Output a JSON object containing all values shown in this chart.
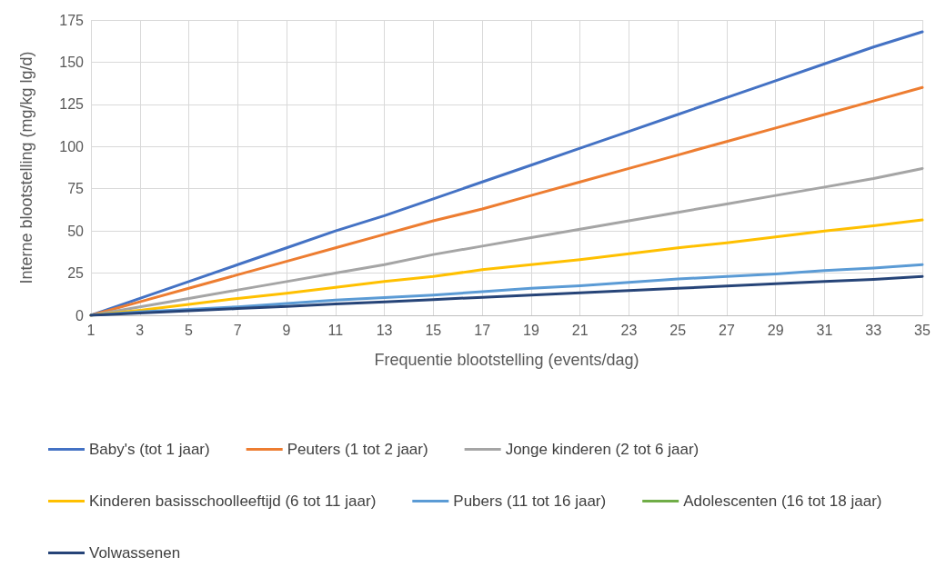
{
  "chart_data": {
    "type": "line",
    "xlabel": "Frequentie blootstelling (events/dag)",
    "ylabel": "Interne blootstelling (mg/kg lg/d)",
    "x": [
      1,
      3,
      5,
      7,
      9,
      11,
      13,
      15,
      17,
      19,
      21,
      23,
      25,
      27,
      29,
      31,
      33,
      35
    ],
    "xlim": [
      1,
      35
    ],
    "xticks": [
      1,
      3,
      5,
      7,
      9,
      11,
      13,
      15,
      17,
      19,
      21,
      23,
      25,
      27,
      29,
      31,
      33,
      35
    ],
    "ylim": [
      0,
      175
    ],
    "yticks": [
      0,
      25,
      50,
      75,
      100,
      125,
      150,
      175
    ],
    "grid": true,
    "legend": "bottom",
    "marker": "none",
    "line_style": "solid",
    "series": [
      {
        "name": "Baby's (tot 1 jaar)",
        "color": "#4472c4",
        "values": [
          0,
          10,
          20,
          30,
          40,
          50,
          59,
          69,
          79,
          89,
          99,
          109,
          119,
          129,
          139,
          149,
          159,
          168
        ]
      },
      {
        "name": "Peuters (1 tot 2 jaar)",
        "color": "#ed7d31",
        "values": [
          0,
          8,
          16,
          24,
          32,
          40,
          48,
          56,
          63,
          71,
          79,
          87,
          95,
          103,
          111,
          119,
          127,
          135
        ]
      },
      {
        "name": "Jonge kinderen (2 tot 6 jaar)",
        "color": "#a5a5a5",
        "values": [
          0,
          5,
          10,
          15,
          20,
          25,
          30,
          36,
          41,
          46,
          51,
          56,
          61,
          66,
          71,
          76,
          81,
          87
        ]
      },
      {
        "name": "Kinderen basisschoolleeftijd (6 tot 11 jaar)",
        "color": "#ffc000",
        "values": [
          0,
          3,
          6.5,
          10,
          13,
          16.5,
          20,
          23,
          27,
          30,
          33,
          36.5,
          40,
          43,
          46.5,
          50,
          53,
          56.5
        ]
      },
      {
        "name": "Pubers (11 tot 16 jaar)",
        "color": "#5b9bd5",
        "values": [
          0,
          2,
          3.5,
          5,
          7,
          9,
          10.5,
          12,
          14,
          16,
          17.5,
          19.5,
          21.5,
          23,
          24.5,
          26.5,
          28,
          30
        ]
      },
      {
        "name": "Adolescenten (16 tot 18 jaar)",
        "color": "#70ad47",
        "values": [
          null,
          null,
          null,
          null,
          null,
          null,
          null,
          null,
          null,
          null,
          null,
          null,
          null,
          null,
          null,
          null,
          null,
          null
        ]
      },
      {
        "name": "Volwassenen",
        "color": "#264478",
        "values": [
          0,
          1.3,
          2.7,
          4,
          5.3,
          6.7,
          8,
          9.3,
          10.7,
          12,
          13.3,
          14.7,
          16,
          17.3,
          18.7,
          20,
          21.3,
          23
        ]
      }
    ]
  }
}
